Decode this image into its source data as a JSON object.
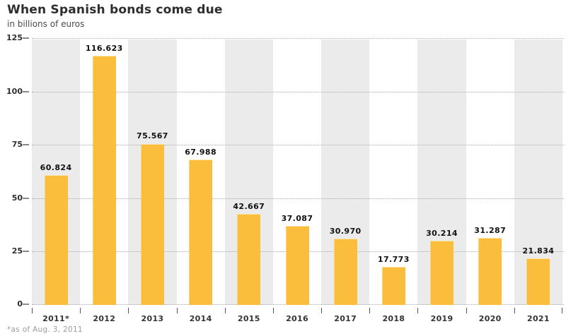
{
  "header": {
    "title": "When Spanish bonds come due",
    "subtitle": "in billions of euros"
  },
  "footnote": "*as of Aug. 3, 2011",
  "chart_data": {
    "type": "bar",
    "title": "When Spanish bonds come due",
    "subtitle": "in billions of euros",
    "categories": [
      "2011*",
      "2012",
      "2013",
      "2014",
      "2015",
      "2016",
      "2017",
      "2018",
      "2019",
      "2020",
      "2021"
    ],
    "values": [
      60.824,
      116.623,
      75.567,
      67.988,
      42.667,
      37.087,
      30.97,
      17.773,
      30.214,
      31.287,
      21.834
    ],
    "value_labels": [
      "60.824",
      "116.623",
      "75.567",
      "67.988",
      "42.667",
      "37.087",
      "30.970",
      "17.773",
      "30.214",
      "31.287",
      "21.834"
    ],
    "xlabel": "",
    "ylabel": "",
    "ylim": [
      0,
      125
    ],
    "yticks": [
      0,
      25,
      50,
      75,
      100,
      125
    ],
    "ytick_labels": [
      "0",
      "25",
      "50",
      "75",
      "100",
      "125"
    ],
    "grid": "horizontal-dotted",
    "legend": "none",
    "footnote": "*as of Aug. 3, 2011",
    "colors": {
      "bar": "#FBBE3C",
      "stripe": "#EBEBEB",
      "grid": "#A9A9A9",
      "y_tick": "#888888",
      "x_tick": "#555555",
      "title": "#2E2E2E",
      "subtitle": "#4A4A4A",
      "value_label": "#111111",
      "axis_label": "#333333",
      "footnote": "#9B9B9B"
    }
  }
}
